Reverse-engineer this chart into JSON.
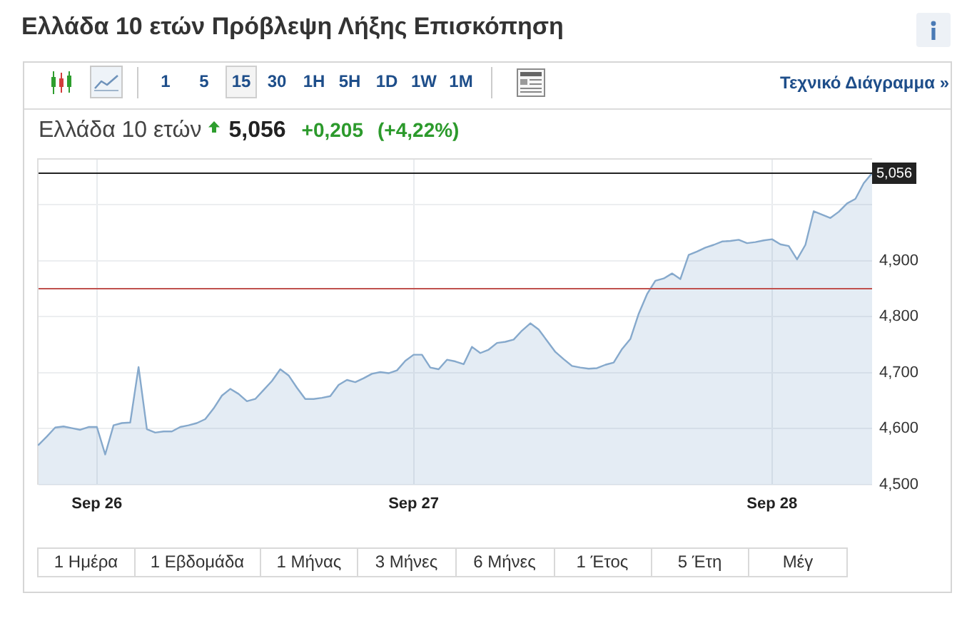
{
  "chart_data": {
    "type": "area",
    "title": "Ελλάδα 10 ετών Πρόβλεψη Λήξης Επισκόπηση",
    "subtitle": "Ελλάδα 10 ετών",
    "annotations": [
      "1 5",
      "15",
      "30",
      "1H",
      "5H",
      "1D",
      "1W",
      "1M",
      "Τεχνικό Διάγραμμα »",
      "5,056",
      "+0,205",
      "(+4,22%)",
      "1 Ημέρα",
      "1 Εβδομάδα",
      "1 Μήνας",
      "3 Μήνες",
      "6 Μήνες",
      "1 Έτος",
      "5 Έτη",
      "Μέγ"
    ],
    "categories": [
      null,
      null,
      null,
      null,
      null,
      null,
      null,
      "Sep 26",
      null,
      null,
      null,
      null,
      null,
      null,
      null,
      null,
      null,
      null,
      null,
      null,
      null,
      null,
      null,
      null,
      null,
      null,
      null,
      null,
      null,
      null,
      null,
      null,
      null,
      null,
      null,
      null,
      null,
      null,
      null,
      null,
      null,
      null,
      null,
      null,
      null,
      "Sep 27",
      null,
      null,
      null,
      null,
      null,
      null,
      null,
      null,
      null,
      null,
      null,
      null,
      null,
      null,
      null,
      null,
      null,
      null,
      null,
      null,
      null,
      null,
      null,
      null,
      null,
      null,
      null,
      null,
      null,
      null,
      null,
      null,
      null,
      null,
      null,
      null,
      null,
      null,
      null,
      null,
      null,
      null,
      "Sep 28",
      null,
      null,
      null,
      null,
      null,
      null,
      null,
      null,
      null,
      null,
      null,
      null
    ],
    "values": [
      4.571,
      4.586,
      4.602,
      4.604,
      4.601,
      4.598,
      4.603,
      4.603,
      4.554,
      4.606,
      4.61,
      4.611,
      4.71,
      4.599,
      4.593,
      4.595,
      4.595,
      4.603,
      4.606,
      4.61,
      4.617,
      4.636,
      4.659,
      4.671,
      4.662,
      4.649,
      4.653,
      4.669,
      4.685,
      4.706,
      4.695,
      4.673,
      4.653,
      4.653,
      4.655,
      4.658,
      4.678,
      4.687,
      4.683,
      4.69,
      4.698,
      4.701,
      4.699,
      4.704,
      4.721,
      4.732,
      4.732,
      4.709,
      4.706,
      4.723,
      4.72,
      4.715,
      4.746,
      4.735,
      4.741,
      4.753,
      4.755,
      4.759,
      4.775,
      4.788,
      4.777,
      4.757,
      4.737,
      4.724,
      4.712,
      4.709,
      4.707,
      4.708,
      4.714,
      4.718,
      4.742,
      4.76,
      4.805,
      4.84,
      4.864,
      4.868,
      4.877,
      4.867,
      4.91,
      4.916,
      4.923,
      4.928,
      4.934,
      4.935,
      4.937,
      4.931,
      4.933,
      4.936,
      4.938,
      4.929,
      4.926,
      4.902,
      4.928,
      4.988,
      4.982,
      4.976,
      4.987,
      5.002,
      5.01,
      5.038,
      5.056
    ],
    "color": "#86a9cc",
    "ylim": [
      4.5,
      5.08
    ],
    "yticks": [
      {
        "value": 5,
        "label": null
      },
      {
        "value": 4.9,
        "label": "4,900"
      },
      {
        "value": 4.8,
        "label": "4,800"
      },
      {
        "value": 4.7,
        "label": "4,700"
      },
      {
        "value": 4.6,
        "label": "4,600"
      },
      {
        "value": 4.5,
        "label": "4,500"
      }
    ],
    "grid": true,
    "ref_lines": [
      {
        "axis": "y",
        "value": 5.056,
        "label": "5,056",
        "color": "#222222"
      },
      {
        "axis": "y",
        "value": 4.851,
        "color": "#c0504d"
      }
    ]
  }
}
